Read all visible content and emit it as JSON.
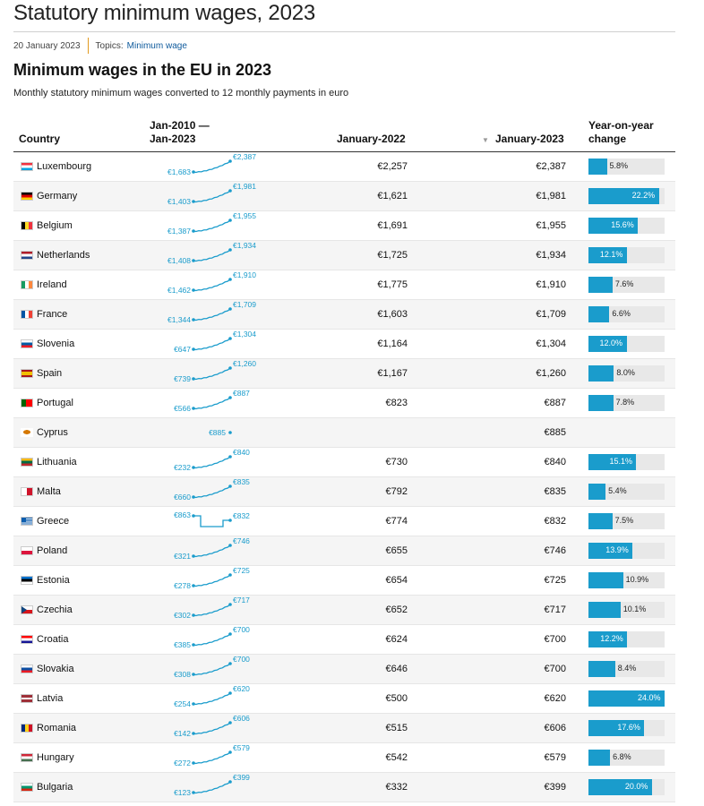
{
  "page": {
    "title": "Statutory minimum wages, 2023",
    "date": "20 January 2023",
    "topics_label": "Topics:",
    "topic_link": "Minimum wage"
  },
  "chart": {
    "title": "Minimum wages in the EU in 2023",
    "subtitle": "Monthly statutory minimum wages converted to 12 monthly payments in euro"
  },
  "table": {
    "headers": {
      "country": "Country",
      "spark_line1": "Jan-2010 —",
      "spark_line2": "Jan-2023",
      "jan2022": "January-2022",
      "sort_icon": "▼",
      "jan2023": "January-2023",
      "yoy_line1": "Year-on-year",
      "yoy_line2": "change"
    },
    "colors": {
      "bar": "#1a9ccc",
      "bar_bg": "#e8e8e8",
      "spark": "#1a9ccc"
    }
  },
  "chart_data": {
    "type": "table",
    "columns": [
      "Country",
      "Jan-2010 — Jan-2023",
      "January-2022",
      "January-2023",
      "Year-on-year change"
    ],
    "rows": [
      {
        "country": "Luxembourg",
        "start": "€1,683",
        "end": "€2,387",
        "jan2022": "€2,257",
        "jan2023": "€2,387",
        "yoy": "5.8%",
        "yoy_value": 5.8,
        "trend": "up"
      },
      {
        "country": "Germany",
        "start": "€1,403",
        "end": "€1,981",
        "jan2022": "€1,621",
        "jan2023": "€1,981",
        "yoy": "22.2%",
        "yoy_value": 22.2,
        "trend": "up"
      },
      {
        "country": "Belgium",
        "start": "€1,387",
        "end": "€1,955",
        "jan2022": "€1,691",
        "jan2023": "€1,955",
        "yoy": "15.6%",
        "yoy_value": 15.6,
        "trend": "up"
      },
      {
        "country": "Netherlands",
        "start": "€1,408",
        "end": "€1,934",
        "jan2022": "€1,725",
        "jan2023": "€1,934",
        "yoy": "12.1%",
        "yoy_value": 12.1,
        "trend": "up"
      },
      {
        "country": "Ireland",
        "start": "€1,462",
        "end": "€1,910",
        "jan2022": "€1,775",
        "jan2023": "€1,910",
        "yoy": "7.6%",
        "yoy_value": 7.6,
        "trend": "up"
      },
      {
        "country": "France",
        "start": "€1,344",
        "end": "€1,709",
        "jan2022": "€1,603",
        "jan2023": "€1,709",
        "yoy": "6.6%",
        "yoy_value": 6.6,
        "trend": "up"
      },
      {
        "country": "Slovenia",
        "start": "€647",
        "end": "€1,304",
        "jan2022": "€1,164",
        "jan2023": "€1,304",
        "yoy": "12.0%",
        "yoy_value": 12.0,
        "trend": "up"
      },
      {
        "country": "Spain",
        "start": "€739",
        "end": "€1,260",
        "jan2022": "€1,167",
        "jan2023": "€1,260",
        "yoy": "8.0%",
        "yoy_value": 8.0,
        "trend": "up"
      },
      {
        "country": "Portugal",
        "start": "€566",
        "end": "€887",
        "jan2022": "€823",
        "jan2023": "€887",
        "yoy": "7.8%",
        "yoy_value": 7.8,
        "trend": "up"
      },
      {
        "country": "Cyprus",
        "start": "",
        "end": "€885",
        "jan2022": "",
        "jan2023": "€885",
        "yoy": "",
        "yoy_value": null,
        "trend": "point"
      },
      {
        "country": "Lithuania",
        "start": "€232",
        "end": "€840",
        "jan2022": "€730",
        "jan2023": "€840",
        "yoy": "15.1%",
        "yoy_value": 15.1,
        "trend": "up"
      },
      {
        "country": "Malta",
        "start": "€660",
        "end": "€835",
        "jan2022": "€792",
        "jan2023": "€835",
        "yoy": "5.4%",
        "yoy_value": 5.4,
        "trend": "up"
      },
      {
        "country": "Greece",
        "start": "€863",
        "end": "€832",
        "jan2022": "€774",
        "jan2023": "€832",
        "yoy": "7.5%",
        "yoy_value": 7.5,
        "trend": "dip"
      },
      {
        "country": "Poland",
        "start": "€321",
        "end": "€746",
        "jan2022": "€655",
        "jan2023": "€746",
        "yoy": "13.9%",
        "yoy_value": 13.9,
        "trend": "up"
      },
      {
        "country": "Estonia",
        "start": "€278",
        "end": "€725",
        "jan2022": "€654",
        "jan2023": "€725",
        "yoy": "10.9%",
        "yoy_value": 10.9,
        "trend": "up"
      },
      {
        "country": "Czechia",
        "start": "€302",
        "end": "€717",
        "jan2022": "€652",
        "jan2023": "€717",
        "yoy": "10.1%",
        "yoy_value": 10.1,
        "trend": "up"
      },
      {
        "country": "Croatia",
        "start": "€385",
        "end": "€700",
        "jan2022": "€624",
        "jan2023": "€700",
        "yoy": "12.2%",
        "yoy_value": 12.2,
        "trend": "up"
      },
      {
        "country": "Slovakia",
        "start": "€308",
        "end": "€700",
        "jan2022": "€646",
        "jan2023": "€700",
        "yoy": "8.4%",
        "yoy_value": 8.4,
        "trend": "up"
      },
      {
        "country": "Latvia",
        "start": "€254",
        "end": "€620",
        "jan2022": "€500",
        "jan2023": "€620",
        "yoy": "24.0%",
        "yoy_value": 24.0,
        "trend": "up"
      },
      {
        "country": "Romania",
        "start": "€142",
        "end": "€606",
        "jan2022": "€515",
        "jan2023": "€606",
        "yoy": "17.6%",
        "yoy_value": 17.6,
        "trend": "up"
      },
      {
        "country": "Hungary",
        "start": "€272",
        "end": "€579",
        "jan2022": "€542",
        "jan2023": "€579",
        "yoy": "6.8%",
        "yoy_value": 6.8,
        "trend": "up"
      },
      {
        "country": "Bulgaria",
        "start": "€123",
        "end": "€399",
        "jan2022": "€332",
        "jan2023": "€399",
        "yoy": "20.0%",
        "yoy_value": 20.0,
        "trend": "up"
      }
    ],
    "yoy_max": 24.0
  }
}
